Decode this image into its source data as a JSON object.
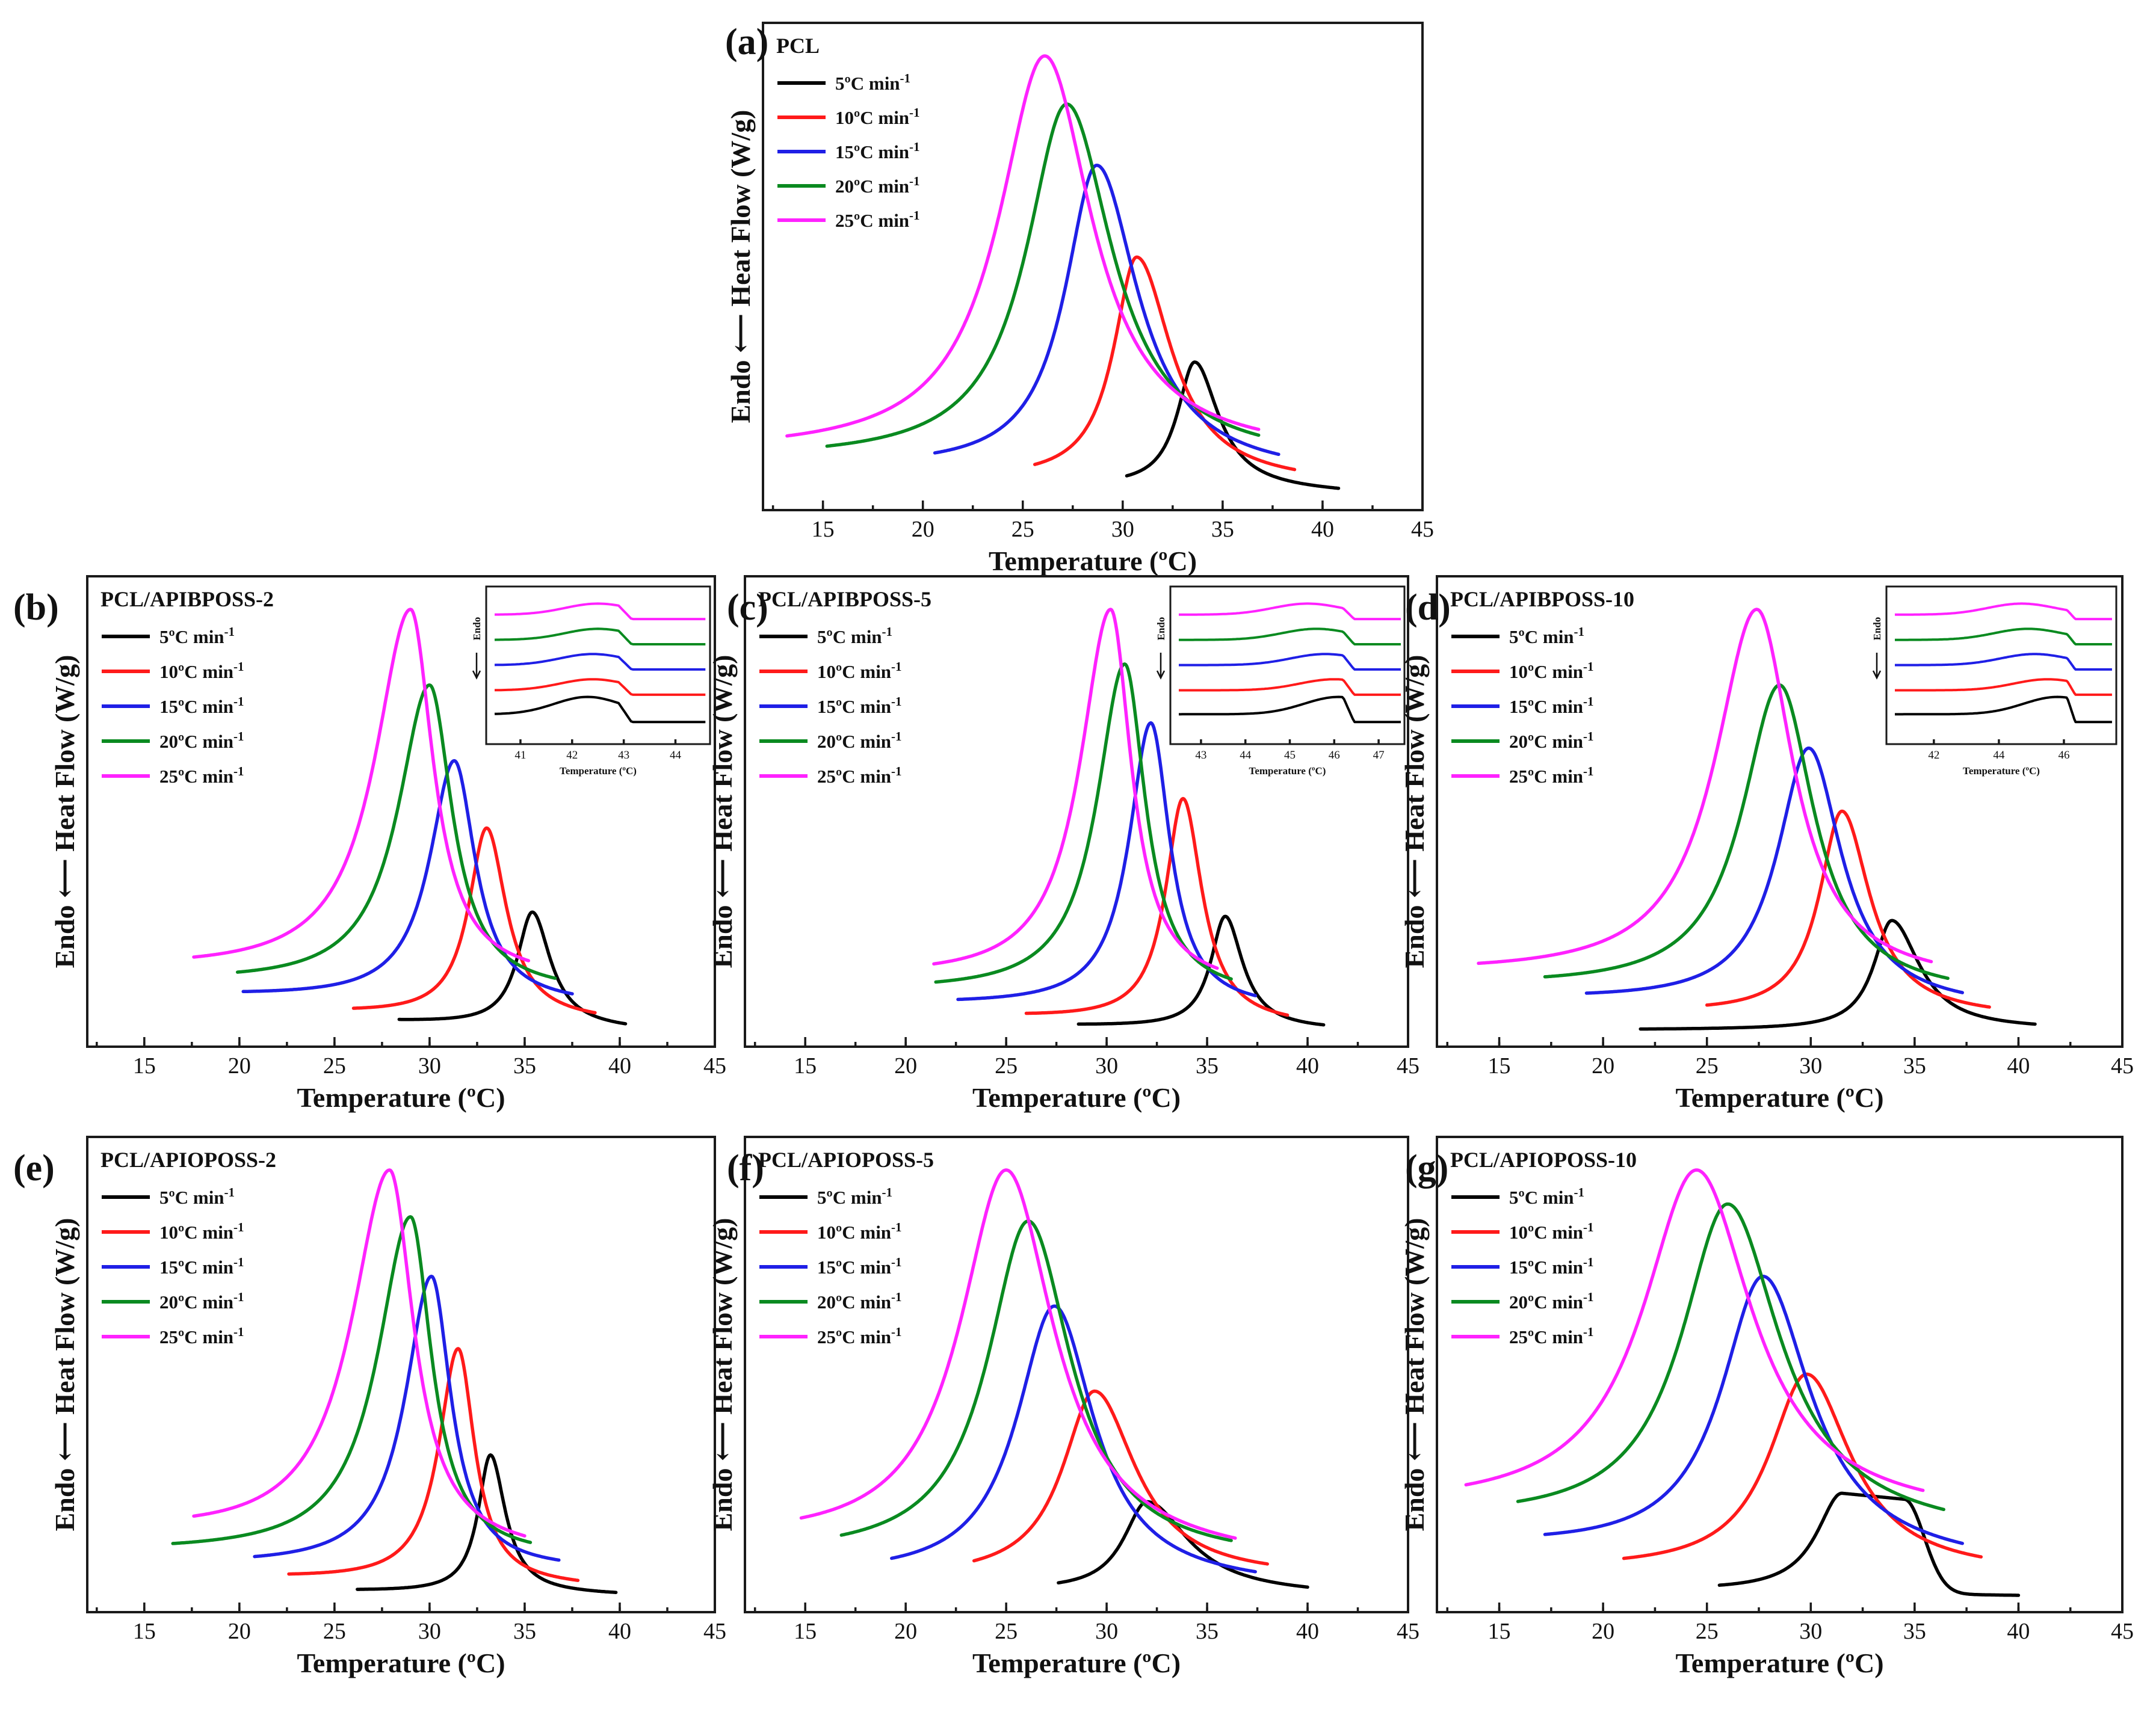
{
  "figure": {
    "description_labels": {}
  },
  "colors": {
    "5": "#000000",
    "10": "#ff1a1a",
    "15": "#1f1fe6",
    "20": "#0a8a20",
    "25": "#ff22ff"
  },
  "chart_data": [
    {
      "id": "a",
      "letter": "(a)",
      "type": "line",
      "title": "PCL",
      "xlabel": "Temperature (ºC)",
      "ylabel": "Endo ⟵ Heat Flow (W/g)",
      "xlim": [
        12,
        45
      ],
      "xticks": [
        15,
        20,
        25,
        30,
        35,
        40,
        45
      ],
      "series": [
        {
          "name": "5ºC min",
          "rate": "5",
          "peak_x": 33.6,
          "peak_y": 0.3,
          "start_x": 30.2,
          "end_x": 40.8,
          "start_y": 0.015,
          "end_y": 0.0,
          "wl": 1.2,
          "wr": 1.5
        },
        {
          "name": "10ºC min",
          "rate": "10",
          "peak_x": 30.7,
          "peak_y": 0.54,
          "start_x": 25.6,
          "end_x": 38.6,
          "start_y": 0.03,
          "end_y": 0.02,
          "wl": 1.6,
          "wr": 2.2
        },
        {
          "name": "15ºC min",
          "rate": "15",
          "peak_x": 28.7,
          "peak_y": 0.75,
          "start_x": 20.6,
          "end_x": 37.8,
          "start_y": 0.055,
          "end_y": 0.04,
          "wl": 2.2,
          "wr": 2.6
        },
        {
          "name": "20ºC min",
          "rate": "20",
          "peak_x": 27.2,
          "peak_y": 0.89,
          "start_x": 15.2,
          "end_x": 36.8,
          "start_y": 0.075,
          "end_y": 0.07,
          "wl": 2.8,
          "wr": 2.9
        },
        {
          "name": "25ºC min",
          "rate": "25",
          "peak_x": 26.1,
          "peak_y": 1.0,
          "start_x": 13.2,
          "end_x": 36.8,
          "start_y": 0.09,
          "end_y": 0.085,
          "wl": 3.2,
          "wr": 3.0
        }
      ]
    },
    {
      "id": "b",
      "letter": "(b)",
      "type": "line",
      "title": "PCL/APIBPOSS-2",
      "xlabel": "Temperature (ºC)",
      "ylabel": "Endo ⟵ Heat Flow (W/g)",
      "xlim": [
        12,
        45
      ],
      "xticks": [
        15,
        20,
        25,
        30,
        35,
        40,
        45
      ],
      "series": [
        {
          "name": "5ºC min",
          "rate": "5",
          "peak_x": 35.4,
          "peak_y": 0.28,
          "start_x": 28.4,
          "end_x": 40.3,
          "start_y": 0.02,
          "end_y": 0.0,
          "wl": 1.1,
          "wr": 1.2
        },
        {
          "name": "10ºC min",
          "rate": "10",
          "peak_x": 33.0,
          "peak_y": 0.48,
          "start_x": 26.0,
          "end_x": 38.7,
          "start_y": 0.04,
          "end_y": 0.02,
          "wl": 1.3,
          "wr": 1.3
        },
        {
          "name": "15ºC min",
          "rate": "15",
          "peak_x": 31.3,
          "peak_y": 0.64,
          "start_x": 20.2,
          "end_x": 37.5,
          "start_y": 0.08,
          "end_y": 0.06,
          "wl": 1.8,
          "wr": 1.4
        },
        {
          "name": "20ºC min",
          "rate": "20",
          "peak_x": 30.0,
          "peak_y": 0.82,
          "start_x": 19.9,
          "end_x": 36.6,
          "start_y": 0.11,
          "end_y": 0.09,
          "wl": 2.3,
          "wr": 1.5
        },
        {
          "name": "25ºC min",
          "rate": "25",
          "peak_x": 29.0,
          "peak_y": 1.0,
          "start_x": 17.6,
          "end_x": 35.2,
          "start_y": 0.14,
          "end_y": 0.12,
          "wl": 2.6,
          "wr": 1.5
        }
      ],
      "inset": {
        "xlabel": "Temperature (ºC)",
        "ylabel": "Endo",
        "xlim": [
          40.5,
          44.6
        ],
        "xticks": [
          41,
          42,
          43,
          44
        ],
        "step_x": 42.9,
        "peaks": [
          42.3,
          42.4,
          42.4,
          42.5,
          42.5
        ]
      }
    },
    {
      "id": "c",
      "letter": "(c)",
      "type": "line",
      "title": "PCL/APIBPOSS-5",
      "xlabel": "Temperature (ºC)",
      "ylabel": "Endo ⟵ Heat Flow (W/g)",
      "xlim": [
        12,
        45
      ],
      "xticks": [
        15,
        20,
        25,
        30,
        35,
        40,
        45
      ],
      "series": [
        {
          "name": "5ºC min",
          "rate": "5",
          "peak_x": 35.9,
          "peak_y": 0.27,
          "start_x": 28.6,
          "end_x": 40.8,
          "start_y": 0.01,
          "end_y": 0.0,
          "wl": 1.0,
          "wr": 1.1
        },
        {
          "name": "10ºC min",
          "rate": "10",
          "peak_x": 33.8,
          "peak_y": 0.55,
          "start_x": 26.0,
          "end_x": 39.0,
          "start_y": 0.03,
          "end_y": 0.01,
          "wl": 1.2,
          "wr": 1.2
        },
        {
          "name": "15ºC min",
          "rate": "15",
          "peak_x": 32.2,
          "peak_y": 0.73,
          "start_x": 22.6,
          "end_x": 37.4,
          "start_y": 0.06,
          "end_y": 0.05,
          "wl": 1.5,
          "wr": 1.2
        },
        {
          "name": "20ºC min",
          "rate": "20",
          "peak_x": 30.9,
          "peak_y": 0.87,
          "start_x": 21.5,
          "end_x": 36.2,
          "start_y": 0.09,
          "end_y": 0.08,
          "wl": 1.9,
          "wr": 1.3
        },
        {
          "name": "25ºC min",
          "rate": "25",
          "peak_x": 30.2,
          "peak_y": 1.0,
          "start_x": 21.4,
          "end_x": 35.5,
          "start_y": 0.12,
          "end_y": 0.1,
          "wl": 2.1,
          "wr": 1.3
        }
      ],
      "inset": {
        "xlabel": "Temperature (ºC)",
        "ylabel": "Endo",
        "xlim": [
          42.5,
          47.5
        ],
        "xticks": [
          43,
          44,
          45,
          46,
          47
        ],
        "step_x": 46.2,
        "peaks": [
          46.1,
          46.0,
          45.8,
          45.6,
          45.4
        ]
      }
    },
    {
      "id": "d",
      "letter": "(d)",
      "type": "line",
      "title": "PCL/APIBPOSS-10",
      "xlabel": "Temperature (ºC)",
      "ylabel": "Endo ⟵ Heat Flow (W/g)",
      "xlim": [
        12,
        45
      ],
      "xticks": [
        15,
        20,
        25,
        30,
        35,
        40,
        45
      ],
      "series": [
        {
          "name": "5ºC min",
          "rate": "5",
          "peak_x": 33.9,
          "peak_y": 0.26,
          "start_x": 21.8,
          "end_x": 40.8,
          "start_y": 0.0,
          "end_y": 0.0,
          "wl": 1.2,
          "wr": 1.7
        },
        {
          "name": "10ºC min",
          "rate": "10",
          "peak_x": 31.5,
          "peak_y": 0.52,
          "start_x": 25.0,
          "end_x": 38.6,
          "start_y": 0.04,
          "end_y": 0.03,
          "wl": 1.5,
          "wr": 1.7
        },
        {
          "name": "15ºC min",
          "rate": "15",
          "peak_x": 29.9,
          "peak_y": 0.67,
          "start_x": 19.2,
          "end_x": 37.3,
          "start_y": 0.07,
          "end_y": 0.05,
          "wl": 2.1,
          "wr": 2.0
        },
        {
          "name": "20ºC min",
          "rate": "20",
          "peak_x": 28.5,
          "peak_y": 0.82,
          "start_x": 17.2,
          "end_x": 36.6,
          "start_y": 0.1,
          "end_y": 0.08,
          "wl": 2.5,
          "wr": 2.1
        },
        {
          "name": "25ºC min",
          "rate": "25",
          "peak_x": 27.4,
          "peak_y": 1.0,
          "start_x": 14.0,
          "end_x": 35.8,
          "start_y": 0.13,
          "end_y": 0.11,
          "wl": 2.8,
          "wr": 2.2
        }
      ],
      "inset": {
        "xlabel": "Temperature (ºC)",
        "ylabel": "Endo",
        "xlim": [
          40.8,
          47.5
        ],
        "xticks": [
          42,
          44,
          46
        ],
        "step_x": 46.1,
        "peaks": [
          45.8,
          45.5,
          45.1,
          44.9,
          44.7
        ]
      }
    },
    {
      "id": "e",
      "letter": "(e)",
      "type": "line",
      "title": "PCL/APIOPOSS-2",
      "xlabel": "Temperature (ºC)",
      "ylabel": "Endo ⟵ Heat Flow (W/g)",
      "xlim": [
        12,
        45
      ],
      "xticks": [
        15,
        20,
        25,
        30,
        35,
        40,
        45
      ],
      "series": [
        {
          "name": "5ºC min",
          "rate": "5",
          "peak_x": 33.2,
          "peak_y": 0.33,
          "start_x": 26.2,
          "end_x": 39.8,
          "start_y": 0.01,
          "end_y": 0.0,
          "wl": 0.9,
          "wr": 1.0
        },
        {
          "name": "10ºC min",
          "rate": "10",
          "peak_x": 31.5,
          "peak_y": 0.58,
          "start_x": 22.6,
          "end_x": 37.8,
          "start_y": 0.04,
          "end_y": 0.02,
          "wl": 1.4,
          "wr": 1.1
        },
        {
          "name": "15ºC min",
          "rate": "15",
          "peak_x": 30.1,
          "peak_y": 0.75,
          "start_x": 20.8,
          "end_x": 36.8,
          "start_y": 0.07,
          "end_y": 0.06,
          "wl": 1.9,
          "wr": 1.3
        },
        {
          "name": "20ºC min",
          "rate": "20",
          "peak_x": 29.0,
          "peak_y": 0.89,
          "start_x": 16.5,
          "end_x": 35.3,
          "start_y": 0.1,
          "end_y": 0.09,
          "wl": 2.4,
          "wr": 1.4
        },
        {
          "name": "25ºC min",
          "rate": "25",
          "peak_x": 27.9,
          "peak_y": 1.0,
          "start_x": 17.6,
          "end_x": 35.0,
          "start_y": 0.14,
          "end_y": 0.1,
          "wl": 2.8,
          "wr": 1.6
        }
      ]
    },
    {
      "id": "f",
      "letter": "(f)",
      "type": "line",
      "title": "PCL/APIOPOSS-5",
      "xlabel": "Temperature (ºC)",
      "ylabel": "Endo ⟵ Heat Flow (W/g)",
      "xlim": [
        12,
        45
      ],
      "xticks": [
        15,
        20,
        25,
        30,
        35,
        40,
        45
      ],
      "series": [
        {
          "name": "5ºC min",
          "rate": "5",
          "peak_x": 32.0,
          "peak_y": 0.22,
          "start_x": 27.6,
          "end_x": 40.0,
          "start_y": 0.01,
          "end_y": 0.0,
          "wl": 1.6,
          "wr": 2.6
        },
        {
          "name": "10ºC min",
          "rate": "10",
          "peak_x": 29.4,
          "peak_y": 0.48,
          "start_x": 23.4,
          "end_x": 38.0,
          "start_y": 0.04,
          "end_y": 0.04,
          "wl": 2.2,
          "wr": 2.6
        },
        {
          "name": "15ºC min",
          "rate": "15",
          "peak_x": 27.4,
          "peak_y": 0.68,
          "start_x": 19.3,
          "end_x": 37.4,
          "start_y": 0.04,
          "end_y": 0.02,
          "wl": 2.6,
          "wr": 2.5
        },
        {
          "name": "20ºC min",
          "rate": "20",
          "peak_x": 26.1,
          "peak_y": 0.88,
          "start_x": 16.8,
          "end_x": 36.2,
          "start_y": 0.09,
          "end_y": 0.08,
          "wl": 2.8,
          "wr": 2.7
        },
        {
          "name": "25ºC min",
          "rate": "25",
          "peak_x": 25.0,
          "peak_y": 1.0,
          "start_x": 14.8,
          "end_x": 36.4,
          "start_y": 0.12,
          "end_y": 0.08,
          "wl": 3.2,
          "wr": 3.0
        }
      ]
    },
    {
      "id": "g",
      "letter": "(g)",
      "type": "line",
      "title": "PCL/APIOPOSS-10",
      "xlabel": "Temperature (ºC)",
      "ylabel": "Endo ⟵ Heat Flow (W/g)",
      "xlim": [
        12,
        45
      ],
      "xticks": [
        15,
        20,
        25,
        30,
        35,
        40,
        45
      ],
      "series": [
        {
          "name": "5ºC min",
          "rate": "5",
          "peak_x": 31.5,
          "peak_y": 0.24,
          "start_x": 25.6,
          "end_x": 40.0,
          "start_y": 0.01,
          "end_y": 0.0,
          "wl": 1.7,
          "wr": 3.0,
          "plateau": 3.0
        },
        {
          "name": "10ºC min",
          "rate": "10",
          "peak_x": 29.8,
          "peak_y": 0.52,
          "start_x": 21.0,
          "end_x": 38.2,
          "start_y": 0.06,
          "end_y": 0.05,
          "wl": 2.5,
          "wr": 2.7
        },
        {
          "name": "15ºC min",
          "rate": "15",
          "peak_x": 27.7,
          "peak_y": 0.75,
          "start_x": 17.2,
          "end_x": 37.3,
          "start_y": 0.11,
          "end_y": 0.07,
          "wl": 2.8,
          "wr": 2.9
        },
        {
          "name": "20ºC min",
          "rate": "20",
          "peak_x": 26.0,
          "peak_y": 0.92,
          "start_x": 15.9,
          "end_x": 36.4,
          "start_y": 0.17,
          "end_y": 0.14,
          "wl": 3.1,
          "wr": 3.2
        },
        {
          "name": "25ºC min",
          "rate": "25",
          "peak_x": 24.5,
          "peak_y": 1.0,
          "start_x": 13.4,
          "end_x": 35.4,
          "start_y": 0.2,
          "end_y": 0.18,
          "wl": 3.6,
          "wr": 3.4
        }
      ]
    }
  ],
  "legend_superscript": "-1",
  "legend_order": [
    "5",
    "10",
    "15",
    "20",
    "25"
  ]
}
